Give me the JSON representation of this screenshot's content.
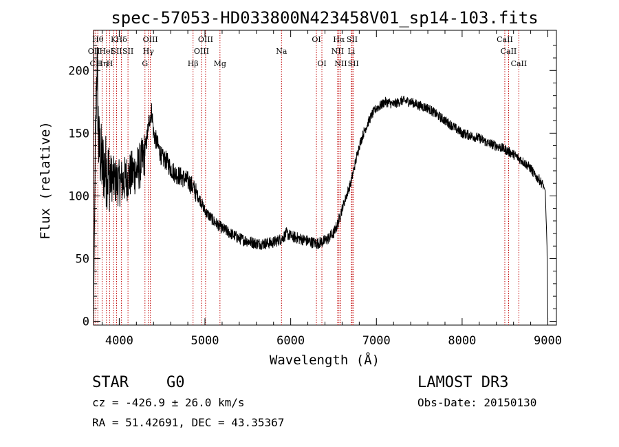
{
  "chart_data": {
    "type": "line",
    "title": "spec-57053-HD033800N423458V01_sp14-103.fits",
    "xlabel": "Wavelength (Å)",
    "ylabel": "Flux (relative)",
    "xlim": [
      3700,
      9100
    ],
    "ylim": [
      -3,
      232
    ],
    "xticks": [
      4000,
      5000,
      6000,
      7000,
      8000,
      9000
    ],
    "yticks": [
      0,
      50,
      100,
      150,
      200
    ],
    "grid": false,
    "series": [
      {
        "name": "spectrum",
        "x": [
          3700,
          3720,
          3740,
          3760,
          3800,
          3850,
          3900,
          3950,
          4000,
          4050,
          4100,
          4150,
          4200,
          4250,
          4300,
          4330,
          4350,
          4380,
          4400,
          4450,
          4500,
          4550,
          4600,
          4650,
          4700,
          4750,
          4800,
          4850,
          4900,
          4950,
          5000,
          5100,
          5200,
          5300,
          5400,
          5500,
          5600,
          5700,
          5800,
          5900,
          5950,
          6000,
          6100,
          6200,
          6300,
          6400,
          6500,
          6550,
          6600,
          6650,
          6700,
          6750,
          6800,
          6850,
          6900,
          6950,
          7000,
          7050,
          7100,
          7150,
          7200,
          7300,
          7400,
          7500,
          7600,
          7700,
          7800,
          7900,
          8000,
          8100,
          8200,
          8300,
          8400,
          8500,
          8600,
          8700,
          8800,
          8850,
          8900,
          8950,
          8970,
          8990,
          9000
        ],
        "y": [
          5,
          130,
          210,
          140,
          125,
          120,
          115,
          112,
          110,
          112,
          115,
          118,
          120,
          125,
          135,
          150,
          160,
          168,
          150,
          140,
          130,
          128,
          122,
          118,
          116,
          114,
          112,
          108,
          102,
          96,
          88,
          80,
          74,
          70,
          66,
          64,
          62,
          62,
          63,
          66,
          70,
          68,
          66,
          64,
          62,
          64,
          70,
          78,
          90,
          100,
          110,
          125,
          140,
          150,
          158,
          165,
          170,
          172,
          175,
          174,
          173,
          176,
          175,
          172,
          170,
          165,
          160,
          155,
          150,
          148,
          146,
          142,
          140,
          137,
          133,
          128,
          122,
          116,
          113,
          108,
          104,
          60,
          2
        ]
      }
    ],
    "lines": [
      {
        "x": 3705,
        "tier": 2,
        "label": "OII"
      },
      {
        "x": 3725,
        "tier": 3,
        "label": "CII"
      },
      {
        "x": 3750,
        "tier": 1,
        "label": "Hθ"
      },
      {
        "x": 3800,
        "tier": 3,
        "label": "Hη"
      },
      {
        "x": 3850,
        "tier": 2,
        "label": "HeI"
      },
      {
        "x": 3889,
        "tier": 3,
        "label": "H"
      },
      {
        "x": 3934,
        "tier": 1,
        "label": "K"
      },
      {
        "x": 3969,
        "tier": 2,
        "label": "SII"
      },
      {
        "x": 4026,
        "tier": 1,
        "label": "Hδ"
      },
      {
        "x": 4102,
        "tier": 2,
        "label": "SII"
      },
      {
        "x": 4300,
        "tier": 3,
        "label": "G"
      },
      {
        "x": 4340,
        "tier": 2,
        "label": "Hγ"
      },
      {
        "x": 4363,
        "tier": 1,
        "label": "OIII"
      },
      {
        "x": 4861,
        "tier": 3,
        "label": "Hβ"
      },
      {
        "x": 4959,
        "tier": 2,
        "label": "OIII"
      },
      {
        "x": 5007,
        "tier": 1,
        "label": "OIII"
      },
      {
        "x": 5175,
        "tier": 3,
        "label": "Mg"
      },
      {
        "x": 5893,
        "tier": 2,
        "label": "Na"
      },
      {
        "x": 6300,
        "tier": 1,
        "label": "OI"
      },
      {
        "x": 6364,
        "tier": 3,
        "label": "OI"
      },
      {
        "x": 6548,
        "tier": 2,
        "label": "NII"
      },
      {
        "x": 6563,
        "tier": 1,
        "label": "Hα"
      },
      {
        "x": 6584,
        "tier": 3,
        "label": "NII"
      },
      {
        "x": 6708,
        "tier": 2,
        "label": "Li"
      },
      {
        "x": 6717,
        "tier": 1,
        "label": "SII"
      },
      {
        "x": 6731,
        "tier": 3,
        "label": "SII"
      },
      {
        "x": 8498,
        "tier": 1,
        "label": "CaII"
      },
      {
        "x": 8542,
        "tier": 2,
        "label": "CaII"
      },
      {
        "x": 8662,
        "tier": 3,
        "label": "CaII"
      }
    ]
  },
  "info": {
    "object_class": "STAR",
    "subclass": "G0",
    "survey": "LAMOST DR3",
    "velocity": "cz = -426.9 ± 26.0 km/s",
    "obs_date": "Obs-Date: 20150130",
    "coordinates": "RA =  51.42691, DEC =  43.35367"
  },
  "colors": {
    "spectrum": "#000000",
    "line_marker": "#c00000",
    "axes": "#000000"
  }
}
